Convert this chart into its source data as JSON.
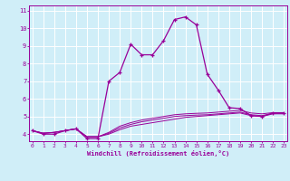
{
  "xlabel": "Windchill (Refroidissement éolien,°C)",
  "background_color": "#d0eef8",
  "grid_color": "#ffffff",
  "line_color": "#990099",
  "x_ticks": [
    0,
    1,
    2,
    3,
    4,
    5,
    6,
    7,
    8,
    9,
    10,
    11,
    12,
    13,
    14,
    15,
    16,
    17,
    18,
    19,
    20,
    21,
    22,
    23
  ],
  "y_ticks": [
    4,
    5,
    6,
    7,
    8,
    9,
    10,
    11
  ],
  "ylim": [
    3.6,
    11.3
  ],
  "xlim": [
    -0.3,
    23.3
  ],
  "line1_x": [
    0,
    1,
    2,
    3,
    4,
    5,
    6,
    7,
    8,
    9,
    10,
    11,
    12,
    13,
    14,
    15,
    16,
    17,
    18,
    19,
    20,
    21,
    22,
    23
  ],
  "line1_y": [
    4.2,
    4.0,
    4.0,
    4.2,
    4.3,
    3.75,
    3.75,
    7.0,
    7.5,
    9.1,
    8.5,
    8.5,
    9.3,
    10.5,
    10.65,
    10.2,
    7.4,
    6.5,
    5.5,
    5.45,
    5.05,
    5.0,
    5.2,
    5.2
  ],
  "line2_x": [
    0,
    1,
    2,
    3,
    4,
    5,
    6,
    7,
    8,
    9,
    10,
    11,
    12,
    13,
    14,
    15,
    16,
    17,
    18,
    19,
    20,
    21,
    22,
    23
  ],
  "line2_y": [
    4.2,
    4.05,
    4.1,
    4.2,
    4.3,
    3.85,
    3.85,
    4.0,
    4.25,
    4.45,
    4.55,
    4.65,
    4.75,
    4.85,
    4.95,
    5.0,
    5.05,
    5.1,
    5.15,
    5.2,
    5.05,
    5.0,
    5.15,
    5.15
  ],
  "line3_x": [
    0,
    1,
    2,
    3,
    4,
    5,
    6,
    7,
    8,
    9,
    10,
    11,
    12,
    13,
    14,
    15,
    16,
    17,
    18,
    19,
    20,
    21,
    22,
    23
  ],
  "line3_y": [
    4.2,
    4.05,
    4.1,
    4.2,
    4.3,
    3.85,
    3.85,
    4.05,
    4.35,
    4.55,
    4.7,
    4.8,
    4.9,
    5.0,
    5.05,
    5.08,
    5.1,
    5.15,
    5.2,
    5.25,
    5.1,
    5.05,
    5.18,
    5.18
  ],
  "line4_x": [
    0,
    1,
    2,
    3,
    4,
    5,
    6,
    7,
    8,
    9,
    10,
    11,
    12,
    13,
    14,
    15,
    16,
    17,
    18,
    19,
    20,
    21,
    22,
    23
  ],
  "line4_y": [
    4.2,
    4.05,
    4.1,
    4.2,
    4.3,
    3.85,
    3.85,
    4.1,
    4.45,
    4.65,
    4.8,
    4.9,
    5.0,
    5.1,
    5.15,
    5.18,
    5.2,
    5.25,
    5.3,
    5.35,
    5.2,
    5.15,
    5.22,
    5.22
  ]
}
